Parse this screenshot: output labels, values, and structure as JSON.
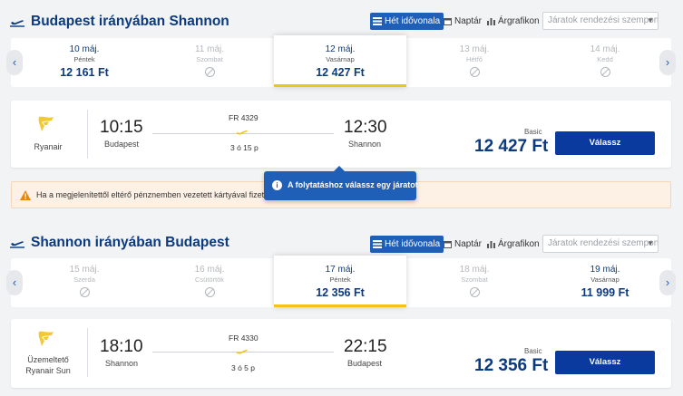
{
  "outbound": {
    "title": "Budapest irányában Shannon",
    "views": {
      "timeline": "Hét idővonala",
      "calendar": "Naptár",
      "price_chart": "Árgrafikon"
    },
    "sort_placeholder": "Járatok rendezési szempontja",
    "dates": [
      {
        "date": "10 máj.",
        "weekday": "Péntek",
        "price": "12 161 Ft",
        "available": true,
        "selected": false
      },
      {
        "date": "11 máj.",
        "weekday": "Szombat",
        "price": "",
        "available": false,
        "selected": false
      },
      {
        "date": "12 máj.",
        "weekday": "Vasárnap",
        "price": "12 427 Ft",
        "available": true,
        "selected": true
      },
      {
        "date": "13 máj.",
        "weekday": "Hétfő",
        "price": "",
        "available": false,
        "selected": false
      },
      {
        "date": "14 máj.",
        "weekday": "Kedd",
        "price": "",
        "available": false,
        "selected": false
      }
    ],
    "flight": {
      "airline": "Ryanair",
      "dep_time": "10:15",
      "dep_city": "Budapest",
      "flight_no": "FR 4329",
      "duration": "3 ó 15 p",
      "arr_time": "12:30",
      "arr_city": "Shannon",
      "fare_type": "Basic",
      "price": "12 427 Ft",
      "select_label": "Válassz"
    }
  },
  "notice": {
    "text": "Ha a megjelenítettől eltérő pénznemben vezetett kártyával fizet, a"
  },
  "tooltip": {
    "text": "A folytatáshoz válassz egy járatot",
    "icon": "info-icon"
  },
  "inbound": {
    "title": "Shannon irányában Budapest",
    "views": {
      "timeline": "Hét idővonala",
      "calendar": "Naptár",
      "price_chart": "Árgrafikon"
    },
    "sort_placeholder": "Járatok rendezési szempontja",
    "dates": [
      {
        "date": "15 máj.",
        "weekday": "Szerda",
        "price": "",
        "available": false,
        "selected": false
      },
      {
        "date": "16 máj.",
        "weekday": "Csütörtök",
        "price": "",
        "available": false,
        "selected": false
      },
      {
        "date": "17 máj.",
        "weekday": "Péntek",
        "price": "12 356 Ft",
        "available": true,
        "selected": true
      },
      {
        "date": "18 máj.",
        "weekday": "Szombat",
        "price": "",
        "available": false,
        "selected": false
      },
      {
        "date": "19 máj.",
        "weekday": "Vasárnap",
        "price": "11 999 Ft",
        "available": true,
        "selected": false
      }
    ],
    "flight": {
      "operator_prefix": "Üzemeltető",
      "airline": "Ryanair Sun",
      "dep_time": "18:10",
      "dep_city": "Shannon",
      "flight_no": "FR 4330",
      "duration": "3 ó 5 p",
      "arr_time": "22:15",
      "arr_city": "Budapest",
      "fare_type": "Basic",
      "price": "12 356 Ft",
      "select_label": "Válassz"
    }
  },
  "colors": {
    "brand_blue": "#0b3a7e",
    "accent_blue": "#1f5fb8",
    "button_blue": "#0b3a9e",
    "selected_underline": "#f0c419",
    "warning_bg": "#fdf1e6",
    "warning_icon": "#e8850c"
  }
}
